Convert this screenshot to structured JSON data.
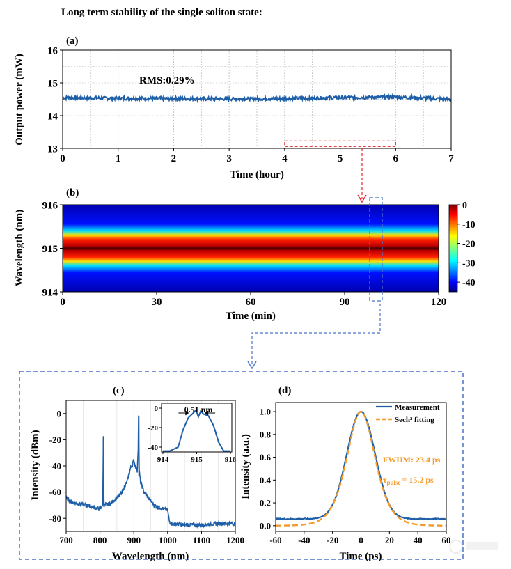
{
  "figure_title": "Long term stability of the single soliton state:",
  "colors": {
    "data_line": "#1f5fa8",
    "red_marker": "#e8272b",
    "blue_marker": "#4a72c8",
    "fit_orange": "#f39a2b",
    "annotation_orange": "#f39a2b",
    "grid": "#b8b8b8"
  },
  "panel_a": {
    "label": "(a)",
    "annotation": "RMS:0.29%"
  },
  "panel_b": {
    "label": "(b)"
  },
  "panel_c": {
    "label": "(c)",
    "inset_annotation": "0.51 nm"
  },
  "panel_d": {
    "label": "(d)",
    "legend": [
      "Measurement",
      "Sech² fitting"
    ],
    "fwhm_text": "FWHM: 23.4 ps",
    "tau_symbol": "τ",
    "tau_subscript": "pulse",
    "tau_value": "= 15.2 ps"
  },
  "chart_data": [
    {
      "id": "a",
      "type": "line",
      "title": "",
      "xlabel": "Time (hour)",
      "ylabel": "Output power (mW)",
      "xlim": [
        0,
        7
      ],
      "ylim": [
        13,
        16
      ],
      "xticks": [
        0,
        1,
        2,
        3,
        4,
        5,
        6,
        7
      ],
      "yticks": [
        13,
        14,
        15,
        16
      ],
      "grid": true,
      "series": [
        {
          "x": [
            0,
            1,
            2,
            3,
            4,
            5,
            6,
            7
          ],
          "y": [
            14.55,
            14.53,
            14.52,
            14.51,
            14.52,
            14.55,
            14.57,
            14.5
          ],
          "noise": 0.05
        }
      ],
      "highlight_x_range": [
        4,
        6
      ],
      "highlight_y": 13.1
    },
    {
      "id": "b",
      "type": "heatmap",
      "xlabel": "Time (min)",
      "ylabel": "Wavelength (nm)",
      "xlim": [
        0,
        120
      ],
      "ylim": [
        914,
        916
      ],
      "xticks": [
        0,
        30,
        60,
        90,
        120
      ],
      "yticks": [
        914,
        915,
        916
      ],
      "colorbar": {
        "range": [
          -45,
          0
        ],
        "ticks": [
          0,
          -10,
          -20,
          -30,
          -40
        ]
      },
      "center_wavelength": 915,
      "highlight_x_range": [
        98,
        102
      ]
    },
    {
      "id": "c",
      "type": "line",
      "xlabel": "Wavelength (nm)",
      "ylabel": "Intensity (dBm)",
      "xlim": [
        700,
        1200
      ],
      "ylim": [
        -90,
        10
      ],
      "xticks": [
        700,
        800,
        900,
        1000,
        1100,
        1200
      ],
      "yticks": [
        0,
        -20,
        -40,
        -60,
        -80
      ],
      "series": [
        {
          "x": [
            700,
            720,
            760,
            800,
            808,
            810,
            812,
            830,
            860,
            880,
            890,
            900,
            905,
            910,
            913,
            914,
            916,
            920,
            930,
            960,
            1000,
            1005,
            1010,
            1050,
            1100,
            1150,
            1200
          ],
          "y": [
            -65,
            -68,
            -70,
            -73,
            -70,
            -18,
            -70,
            -69,
            -62,
            -52,
            -42,
            -36,
            -40,
            -44,
            -26,
            -2,
            -44,
            -52,
            -60,
            -70,
            -74,
            -82,
            -84,
            -85,
            -85,
            -84,
            -84
          ]
        }
      ],
      "inset": {
        "xlim": [
          914,
          916
        ],
        "ylim": [
          -45,
          5
        ],
        "xticks": [
          914,
          915,
          916
        ],
        "yticks": [
          0,
          -20,
          -40
        ],
        "x": [
          914.0,
          914.2,
          914.45,
          914.6,
          914.75,
          914.9,
          914.98,
          915.05,
          915.12,
          915.2,
          915.35,
          915.5,
          915.65,
          915.8,
          916.0
        ],
        "y": [
          -44,
          -44,
          -40,
          -22,
          -10,
          -5,
          -2,
          -9,
          -3,
          -6,
          -8,
          -18,
          -35,
          -44,
          -44
        ]
      }
    },
    {
      "id": "d",
      "type": "line",
      "xlabel": "Time (ps)",
      "ylabel": "Intensity (a.u.)",
      "xlim": [
        -60,
        60
      ],
      "ylim": [
        -0.05,
        1.08
      ],
      "xticks": [
        -60,
        -40,
        -20,
        0,
        20,
        40,
        60
      ],
      "yticks": [
        0.0,
        0.2,
        0.4,
        0.6,
        0.8,
        1.0
      ],
      "series": [
        {
          "name": "Measurement",
          "style": "solid",
          "model": "gauss",
          "fwhm": 23.4,
          "baseline": 0.06
        },
        {
          "name": "Sech² fitting",
          "style": "dashed",
          "model": "sech2",
          "tau": 15.2,
          "baseline": 0.0
        }
      ]
    }
  ]
}
